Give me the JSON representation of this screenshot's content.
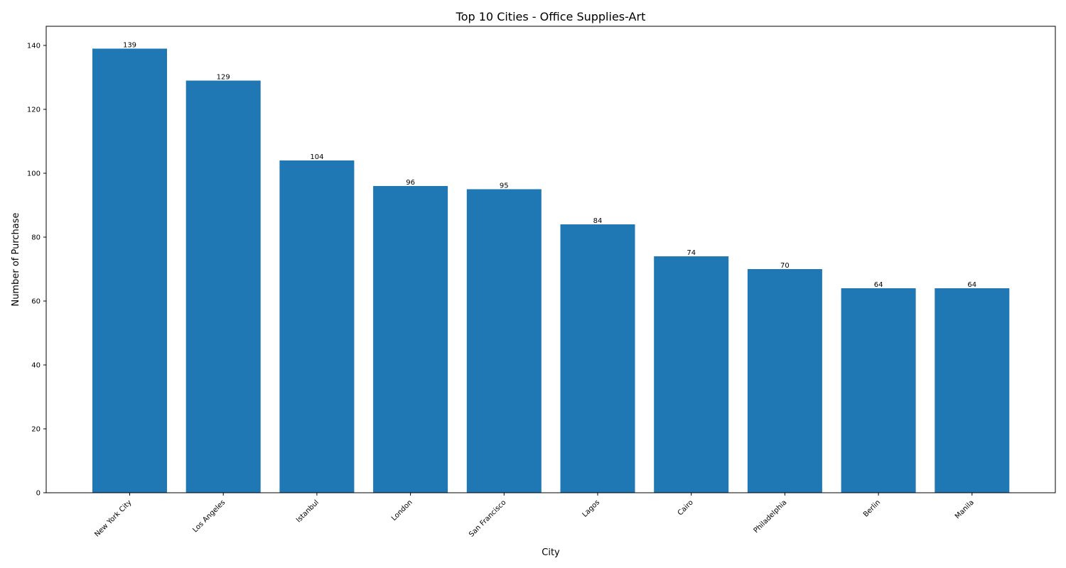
{
  "chart_data": {
    "type": "bar",
    "title": "Top 10 Cities - Office Supplies-Art",
    "xlabel": "City",
    "ylabel": "Number of Purchase",
    "categories": [
      "New York City",
      "Los Angeles",
      "Istanbul",
      "London",
      "San Francisco",
      "Lagos",
      "Cairo",
      "Philadelphia",
      "Berlin",
      "Manila"
    ],
    "values": [
      139,
      129,
      104,
      96,
      95,
      84,
      74,
      70,
      64,
      64
    ],
    "ylim": [
      0,
      146
    ],
    "yticks": [
      0,
      20,
      40,
      60,
      80,
      100,
      120,
      140
    ],
    "bar_color": "#1f77b4",
    "grid": false,
    "legend": "none",
    "data_labels": true
  }
}
